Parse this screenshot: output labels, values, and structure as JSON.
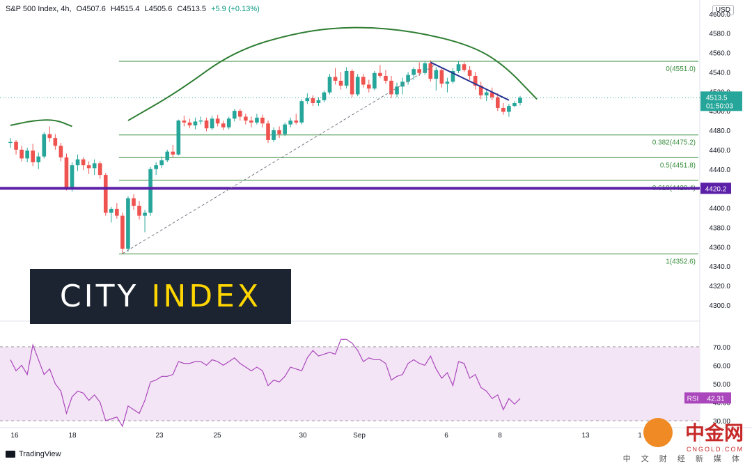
{
  "header": {
    "symbol": "S&P 500 Index, 4h,",
    "open": "O4507.6",
    "high": "H4515.4",
    "low": "L4505.6",
    "close": "C4513.5",
    "change": "+5.9 (+0.13%)",
    "currency": "USD"
  },
  "colors": {
    "up": "#26a69a",
    "down": "#ef5350",
    "fib": "#388e3c",
    "support": "#5b1fa8",
    "trend": "#283593",
    "rsi_line": "#ab47bc",
    "rsi_band": "#f3e5f5",
    "arc": "#2e7d32"
  },
  "logo": {
    "word1": "CITY",
    "word2": "INDEX"
  },
  "watermark": {
    "brand": "中金网",
    "domain": "CNGOLD.COM",
    "tagline": "中 文 财 经 新 媒 体"
  },
  "footer": {
    "brand": "TradingView"
  },
  "chart_data": [
    {
      "type": "candlestick",
      "title": "S&P 500 Index, 4h",
      "ylim": [
        4287,
        4607
      ],
      "x_axis_labels": [
        "16",
        "18",
        "23",
        "25",
        "30",
        "Sep",
        "6",
        "8",
        "13",
        "1"
      ],
      "y_ticks": [
        4300,
        4320,
        4340,
        4360,
        4380,
        4400,
        4420,
        4440,
        4460,
        4480,
        4500,
        4520,
        4540,
        4560,
        4580,
        4600
      ],
      "y_tick_labels": [
        "4300.0",
        "4320.0",
        "4340.0",
        "4360.0",
        "4380.0",
        "4400.0",
        "4420.0",
        "4440.0",
        "4460.0",
        "4480.0",
        "4500.0",
        "4520.0",
        "4540.0",
        "4560.0",
        "4580.0",
        "4600.0"
      ],
      "last_price": {
        "value": 4513.5,
        "label": "4513.5",
        "countdown": "01:50:03"
      },
      "support_line": {
        "value": 4420.2,
        "label": "4420.2"
      },
      "fib_levels": [
        {
          "ratio": 0,
          "value": 4551.0,
          "label": "0(4551.0)"
        },
        {
          "ratio": 0.382,
          "value": 4475.2,
          "label": "0.382(4475.2)"
        },
        {
          "ratio": 0.5,
          "value": 4451.8,
          "label": "0.5(4451.8)"
        },
        {
          "ratio": 0.618,
          "value": 4428.4,
          "label": "0.618(4428.4)"
        },
        {
          "ratio": 1,
          "value": 4352.6,
          "label": "1(4352.6)"
        }
      ],
      "candles": [
        [
          4467,
          4472,
          4462,
          4468
        ],
        [
          4468,
          4470,
          4455,
          4460
        ],
        [
          4460,
          4464,
          4448,
          4451
        ],
        [
          4451,
          4462,
          4447,
          4459
        ],
        [
          4459,
          4466,
          4443,
          4447
        ],
        [
          4447,
          4457,
          4440,
          4453
        ],
        [
          4453,
          4478,
          4451,
          4476
        ],
        [
          4476,
          4484,
          4468,
          4472
        ],
        [
          4472,
          4476,
          4460,
          4464
        ],
        [
          4464,
          4467,
          4448,
          4452
        ],
        [
          4452,
          4456,
          4418,
          4420
        ],
        [
          4420,
          4447,
          4417,
          4444
        ],
        [
          4444,
          4455,
          4438,
          4450
        ],
        [
          4450,
          4452,
          4439,
          4444
        ],
        [
          4444,
          4448,
          4435,
          4441
        ],
        [
          4441,
          4450,
          4434,
          4446
        ],
        [
          4446,
          4448,
          4430,
          4434
        ],
        [
          4434,
          4436,
          4392,
          4395
        ],
        [
          4395,
          4401,
          4385,
          4399
        ],
        [
          4399,
          4405,
          4389,
          4392
        ],
        [
          4392,
          4395,
          4353,
          4358
        ],
        [
          4358,
          4412,
          4355,
          4410
        ],
        [
          4410,
          4414,
          4398,
          4402
        ],
        [
          4402,
          4407,
          4388,
          4392
        ],
        [
          4392,
          4398,
          4375,
          4395
        ],
        [
          4395,
          4442,
          4392,
          4440
        ],
        [
          4440,
          4447,
          4434,
          4444
        ],
        [
          4444,
          4453,
          4441,
          4449
        ],
        [
          4449,
          4460,
          4447,
          4458
        ],
        [
          4458,
          4465,
          4452,
          4455
        ],
        [
          4455,
          4491,
          4454,
          4490
        ],
        [
          4490,
          4495,
          4484,
          4488
        ],
        [
          4488,
          4492,
          4482,
          4485
        ],
        [
          4485,
          4493,
          4481,
          4489
        ],
        [
          4489,
          4494,
          4486,
          4490
        ],
        [
          4490,
          4493,
          4479,
          4482
        ],
        [
          4482,
          4495,
          4480,
          4492
        ],
        [
          4492,
          4496,
          4484,
          4487
        ],
        [
          4487,
          4490,
          4480,
          4483
        ],
        [
          4483,
          4494,
          4481,
          4492
        ],
        [
          4492,
          4502,
          4489,
          4500
        ],
        [
          4500,
          4502,
          4490,
          4494
        ],
        [
          4494,
          4497,
          4486,
          4490
        ],
        [
          4490,
          4494,
          4483,
          4488
        ],
        [
          4488,
          4497,
          4486,
          4493
        ],
        [
          4493,
          4496,
          4483,
          4487
        ],
        [
          4487,
          4490,
          4467,
          4470
        ],
        [
          4470,
          4483,
          4468,
          4480
        ],
        [
          4480,
          4484,
          4472,
          4476
        ],
        [
          4476,
          4488,
          4474,
          4486
        ],
        [
          4486,
          4493,
          4483,
          4490
        ],
        [
          4490,
          4497,
          4486,
          4488
        ],
        [
          4488,
          4512,
          4486,
          4510
        ],
        [
          4510,
          4518,
          4507,
          4513
        ],
        [
          4513,
          4516,
          4505,
          4508
        ],
        [
          4508,
          4514,
          4505,
          4511
        ],
        [
          4511,
          4521,
          4509,
          4519
        ],
        [
          4519,
          4538,
          4517,
          4535
        ],
        [
          4535,
          4544,
          4527,
          4531
        ],
        [
          4531,
          4540,
          4522,
          4526
        ],
        [
          4526,
          4545,
          4523,
          4541
        ],
        [
          4541,
          4543,
          4514,
          4517
        ],
        [
          4517,
          4538,
          4515,
          4535
        ],
        [
          4535,
          4538,
          4524,
          4527
        ],
        [
          4527,
          4532,
          4519,
          4523
        ],
        [
          4523,
          4541,
          4521,
          4539
        ],
        [
          4539,
          4547,
          4534,
          4536
        ],
        [
          4536,
          4542,
          4528,
          4531
        ],
        [
          4531,
          4536,
          4513,
          4517
        ],
        [
          4517,
          4529,
          4514,
          4525
        ],
        [
          4525,
          4534,
          4517,
          4530
        ],
        [
          4530,
          4540,
          4527,
          4537
        ],
        [
          4537,
          4545,
          4532,
          4543
        ],
        [
          4543,
          4550,
          4536,
          4539
        ],
        [
          4539,
          4551,
          4537,
          4549
        ],
        [
          4549,
          4552,
          4530,
          4533
        ],
        [
          4533,
          4545,
          4521,
          4542
        ],
        [
          4542,
          4544,
          4524,
          4528
        ],
        [
          4528,
          4534,
          4519,
          4530
        ],
        [
          4530,
          4544,
          4528,
          4541
        ],
        [
          4541,
          4551,
          4539,
          4548
        ],
        [
          4548,
          4550,
          4540,
          4542
        ],
        [
          4542,
          4546,
          4532,
          4536
        ],
        [
          4536,
          4540,
          4522,
          4526
        ],
        [
          4526,
          4530,
          4512,
          4516
        ],
        [
          4516,
          4522,
          4510,
          4519
        ],
        [
          4519,
          4524,
          4511,
          4514
        ],
        [
          4514,
          4518,
          4500,
          4503
        ],
        [
          4503,
          4508,
          4496,
          4499
        ],
        [
          4499,
          4507,
          4494,
          4505
        ],
        [
          4505,
          4510,
          4504,
          4508
        ],
        [
          4508,
          4515.4,
          4505.6,
          4513.5
        ]
      ],
      "extra_series": [
        {
          "type": "trendline",
          "points": [
            [
              20,
              4353
            ],
            [
              76,
              4548
            ]
          ]
        },
        {
          "type": "trendline",
          "points": [
            [
              75,
              4550
            ],
            [
              89,
              4511
            ]
          ]
        },
        {
          "type": "arc",
          "points": [
            [
              0,
              4485
            ],
            [
              4,
              4490
            ],
            [
              8,
              4491
            ],
            [
              11,
              4484
            ]
          ]
        },
        {
          "type": "arc",
          "points": [
            [
              21,
              4490
            ],
            [
              30,
              4520
            ],
            [
              40,
              4562
            ],
            [
              52,
              4582
            ],
            [
              62,
              4587
            ],
            [
              72,
              4582
            ],
            [
              82,
              4568
            ],
            [
              88,
              4548
            ],
            [
              94,
              4512
            ]
          ]
        }
      ],
      "rsi": {
        "label": "RSI",
        "last_value": 42.31,
        "last_label": "42.31",
        "upper": 70,
        "lower": 30,
        "ylim": [
          27,
          82
        ],
        "y_ticks": [
          30,
          40,
          50,
          60,
          70
        ],
        "y_tick_labels": [
          "30.00",
          "40.00",
          "50.00",
          "60.00",
          "70.00"
        ],
        "values": [
          63,
          57,
          60,
          55,
          71,
          63,
          55,
          58,
          50,
          46,
          34,
          43,
          46,
          45,
          41,
          44,
          40,
          30,
          31,
          32,
          25,
          38,
          36,
          34,
          41,
          51,
          52,
          54,
          54,
          55,
          62,
          61,
          61,
          62,
          62,
          60,
          63,
          62,
          60,
          62,
          64,
          61,
          59,
          57,
          59,
          57,
          49,
          52,
          51,
          54,
          59,
          58,
          57,
          64,
          68,
          65,
          66,
          67,
          66,
          74,
          74,
          72,
          68,
          62,
          64,
          63,
          63,
          61,
          52,
          54,
          55,
          61,
          63,
          61,
          60,
          65,
          58,
          53,
          56,
          49,
          62,
          61,
          53,
          55,
          48,
          46,
          42,
          44,
          36,
          42,
          39,
          42
        ]
      }
    }
  ]
}
